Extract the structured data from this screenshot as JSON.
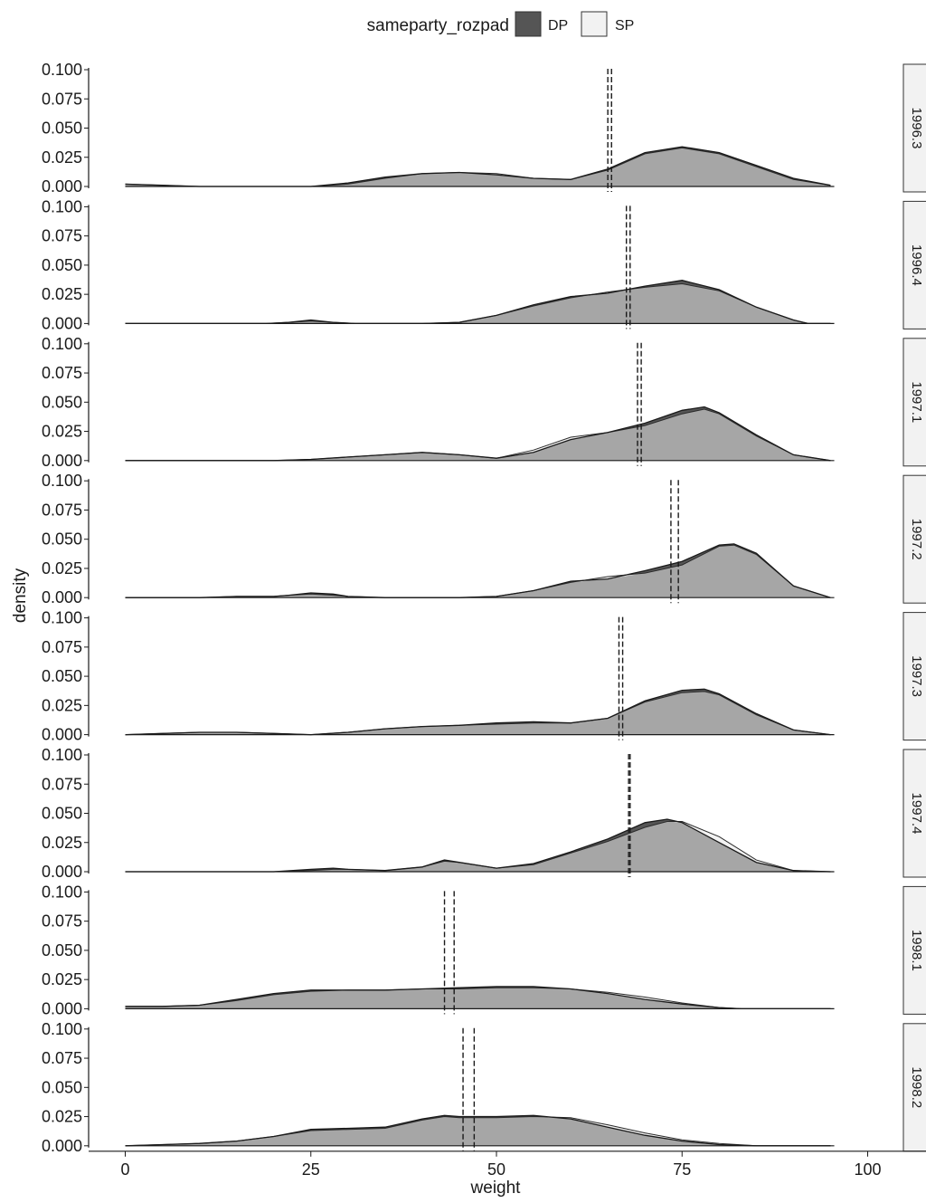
{
  "chart_data": {
    "type": "area",
    "xlabel": "weight",
    "ylabel": "density",
    "xlim": [
      0,
      100
    ],
    "ylim": [
      0,
      0.1
    ],
    "x_ticks": [
      "0",
      "25",
      "50",
      "75",
      "100"
    ],
    "y_ticks": [
      "0.000",
      "0.025",
      "0.050",
      "0.075",
      "0.100"
    ],
    "grid": false,
    "legend": {
      "title": "sameparty_rozpad",
      "position": "top",
      "entries": [
        {
          "label": "DP",
          "color": "#555555"
        },
        {
          "label": "SP",
          "color": "#f2f2f2"
        }
      ]
    },
    "overlap_color": "#a6a6a6",
    "facets": [
      {
        "label": "1996.3",
        "vlines": [
          65,
          65.5
        ],
        "series": [
          {
            "name": "DP",
            "x": [
              0,
              5,
              10,
              20,
              25,
              30,
              35,
              40,
              45,
              50,
              55,
              60,
              65,
              70,
              75,
              80,
              85,
              90,
              95
            ],
            "y": [
              0.002,
              0.001,
              0,
              0,
              0,
              0.003,
              0.008,
              0.011,
              0.012,
              0.01,
              0.007,
              0.006,
              0.015,
              0.029,
              0.034,
              0.029,
              0.018,
              0.007,
              0.001
            ]
          },
          {
            "name": "SP",
            "x": [
              0,
              5,
              10,
              20,
              25,
              30,
              35,
              40,
              45,
              50,
              55,
              60,
              65,
              70,
              75,
              80,
              85,
              90,
              95
            ],
            "y": [
              0.002,
              0.001,
              0,
              0,
              0,
              0.002,
              0.007,
              0.011,
              0.012,
              0.011,
              0.007,
              0.006,
              0.014,
              0.028,
              0.033,
              0.028,
              0.017,
              0.006,
              0.001
            ]
          }
        ]
      },
      {
        "label": "1996.4",
        "vlines": [
          67.5,
          68
        ],
        "series": [
          {
            "name": "DP",
            "x": [
              0,
              15,
              19,
              22,
              25,
              28,
              31,
              40,
              45,
              50,
              55,
              60,
              65,
              70,
              75,
              80,
              85,
              90,
              92,
              95
            ],
            "y": [
              0,
              0,
              0,
              0.001,
              0.003,
              0.001,
              0,
              0,
              0.001,
              0.007,
              0.016,
              0.023,
              0.026,
              0.032,
              0.037,
              0.029,
              0.014,
              0.003,
              0,
              0
            ]
          },
          {
            "name": "SP",
            "x": [
              0,
              15,
              19,
              22,
              25,
              28,
              31,
              40,
              45,
              50,
              55,
              60,
              65,
              70,
              75,
              80,
              85,
              90,
              92,
              95
            ],
            "y": [
              0,
              0,
              0,
              0.001,
              0.002,
              0.001,
              0,
              0,
              0.001,
              0.007,
              0.015,
              0.022,
              0.027,
              0.031,
              0.034,
              0.028,
              0.014,
              0.003,
              0,
              0
            ]
          }
        ]
      },
      {
        "label": "1997.1",
        "vlines": [
          69,
          69.5
        ],
        "series": [
          {
            "name": "DP",
            "x": [
              0,
              20,
              25,
              30,
              35,
              40,
              45,
              50,
              55,
              60,
              65,
              70,
              75,
              78,
              80,
              85,
              90,
              95
            ],
            "y": [
              0,
              0,
              0.001,
              0.003,
              0.005,
              0.007,
              0.005,
              0.002,
              0.007,
              0.018,
              0.024,
              0.032,
              0.043,
              0.046,
              0.041,
              0.022,
              0.005,
              0
            ]
          },
          {
            "name": "SP",
            "x": [
              0,
              20,
              25,
              30,
              35,
              40,
              45,
              50,
              55,
              60,
              65,
              70,
              75,
              78,
              80,
              85,
              90,
              95
            ],
            "y": [
              0,
              0,
              0.001,
              0.003,
              0.005,
              0.007,
              0.005,
              0.002,
              0.009,
              0.02,
              0.024,
              0.03,
              0.04,
              0.044,
              0.04,
              0.021,
              0.005,
              0
            ]
          }
        ]
      },
      {
        "label": "1997.2",
        "vlines": [
          73.5,
          74.5
        ],
        "series": [
          {
            "name": "DP",
            "x": [
              0,
              10,
              15,
              20,
              22,
              25,
              28,
              30,
              35,
              45,
              50,
              55,
              60,
              65,
              70,
              75,
              80,
              82,
              85,
              90,
              95
            ],
            "y": [
              0,
              0,
              0.001,
              0.001,
              0.002,
              0.004,
              0.003,
              0.001,
              0,
              0,
              0.001,
              0.006,
              0.014,
              0.016,
              0.023,
              0.031,
              0.045,
              0.046,
              0.038,
              0.01,
              0
            ]
          },
          {
            "name": "SP",
            "x": [
              0,
              10,
              15,
              20,
              22,
              25,
              28,
              30,
              35,
              45,
              50,
              55,
              60,
              65,
              70,
              75,
              80,
              82,
              85,
              90,
              95
            ],
            "y": [
              0,
              0,
              0.001,
              0.001,
              0.002,
              0.003,
              0.002,
              0.001,
              0,
              0,
              0.001,
              0.006,
              0.013,
              0.018,
              0.021,
              0.028,
              0.044,
              0.045,
              0.037,
              0.01,
              0
            ]
          }
        ]
      },
      {
        "label": "1997.3",
        "vlines": [
          66.5,
          67
        ],
        "series": [
          {
            "name": "DP",
            "x": [
              0,
              5,
              10,
              15,
              20,
              25,
              30,
              35,
              40,
              45,
              50,
              55,
              60,
              65,
              70,
              75,
              78,
              80,
              85,
              90,
              95
            ],
            "y": [
              0,
              0.001,
              0.002,
              0.002,
              0.001,
              0,
              0.002,
              0.005,
              0.007,
              0.008,
              0.01,
              0.011,
              0.01,
              0.014,
              0.029,
              0.038,
              0.039,
              0.035,
              0.018,
              0.004,
              0
            ]
          },
          {
            "name": "SP",
            "x": [
              0,
              5,
              10,
              15,
              20,
              25,
              30,
              35,
              40,
              45,
              50,
              55,
              60,
              65,
              70,
              75,
              78,
              80,
              85,
              90,
              95
            ],
            "y": [
              0,
              0.001,
              0.002,
              0.002,
              0.001,
              0,
              0.002,
              0.005,
              0.007,
              0.008,
              0.009,
              0.01,
              0.01,
              0.014,
              0.028,
              0.036,
              0.037,
              0.034,
              0.017,
              0.004,
              0
            ]
          }
        ]
      },
      {
        "label": "1997.4",
        "vlines": [
          67.8,
          68
        ],
        "series": [
          {
            "name": "DP",
            "x": [
              0,
              20,
              25,
              28,
              30,
              35,
              40,
              43,
              45,
              50,
              55,
              60,
              65,
              70,
              73,
              75,
              80,
              85,
              90,
              95
            ],
            "y": [
              0,
              0,
              0.002,
              0.003,
              0.002,
              0.001,
              0.004,
              0.01,
              0.008,
              0.003,
              0.007,
              0.017,
              0.028,
              0.042,
              0.045,
              0.042,
              0.025,
              0.008,
              0.001,
              0
            ]
          },
          {
            "name": "SP",
            "x": [
              0,
              20,
              25,
              28,
              30,
              35,
              40,
              43,
              45,
              50,
              55,
              60,
              65,
              70,
              73,
              75,
              80,
              85,
              90,
              95
            ],
            "y": [
              0,
              0,
              0.001,
              0.002,
              0.002,
              0.001,
              0.004,
              0.009,
              0.008,
              0.003,
              0.006,
              0.016,
              0.026,
              0.038,
              0.043,
              0.043,
              0.03,
              0.01,
              0.001,
              0
            ]
          }
        ]
      },
      {
        "label": "1998.1",
        "vlines": [
          43,
          44.3
        ],
        "series": [
          {
            "name": "DP",
            "x": [
              0,
              5,
              10,
              15,
              20,
              25,
              30,
              35,
              40,
              45,
              50,
              55,
              60,
              65,
              70,
              75,
              80,
              83,
              95
            ],
            "y": [
              0.002,
              0.002,
              0.003,
              0.008,
              0.013,
              0.016,
              0.016,
              0.016,
              0.017,
              0.018,
              0.019,
              0.019,
              0.017,
              0.013,
              0.008,
              0.004,
              0.001,
              0,
              0
            ]
          },
          {
            "name": "SP",
            "x": [
              0,
              5,
              10,
              15,
              20,
              25,
              30,
              35,
              40,
              45,
              50,
              55,
              60,
              65,
              70,
              75,
              80,
              83,
              95
            ],
            "y": [
              0.002,
              0.002,
              0.003,
              0.007,
              0.012,
              0.015,
              0.016,
              0.016,
              0.017,
              0.017,
              0.018,
              0.018,
              0.017,
              0.014,
              0.01,
              0.005,
              0.001,
              0,
              0
            ]
          }
        ]
      },
      {
        "label": "1998.2",
        "vlines": [
          45.5,
          47
        ],
        "series": [
          {
            "name": "DP",
            "x": [
              0,
              5,
              10,
              15,
              20,
              25,
              30,
              35,
              40,
              43,
              45,
              50,
              55,
              60,
              65,
              70,
              75,
              80,
              85,
              90,
              95
            ],
            "y": [
              0,
              0.001,
              0.002,
              0.004,
              0.008,
              0.014,
              0.015,
              0.016,
              0.023,
              0.026,
              0.025,
              0.025,
              0.026,
              0.023,
              0.016,
              0.009,
              0.004,
              0.001,
              0,
              0,
              0
            ]
          },
          {
            "name": "SP",
            "x": [
              0,
              5,
              10,
              15,
              20,
              25,
              30,
              35,
              40,
              43,
              45,
              50,
              55,
              60,
              65,
              70,
              75,
              80,
              85,
              90,
              95
            ],
            "y": [
              0,
              0.001,
              0.002,
              0.004,
              0.008,
              0.013,
              0.014,
              0.015,
              0.022,
              0.025,
              0.024,
              0.024,
              0.025,
              0.024,
              0.018,
              0.011,
              0.005,
              0.002,
              0,
              0,
              0
            ]
          }
        ]
      }
    ]
  }
}
